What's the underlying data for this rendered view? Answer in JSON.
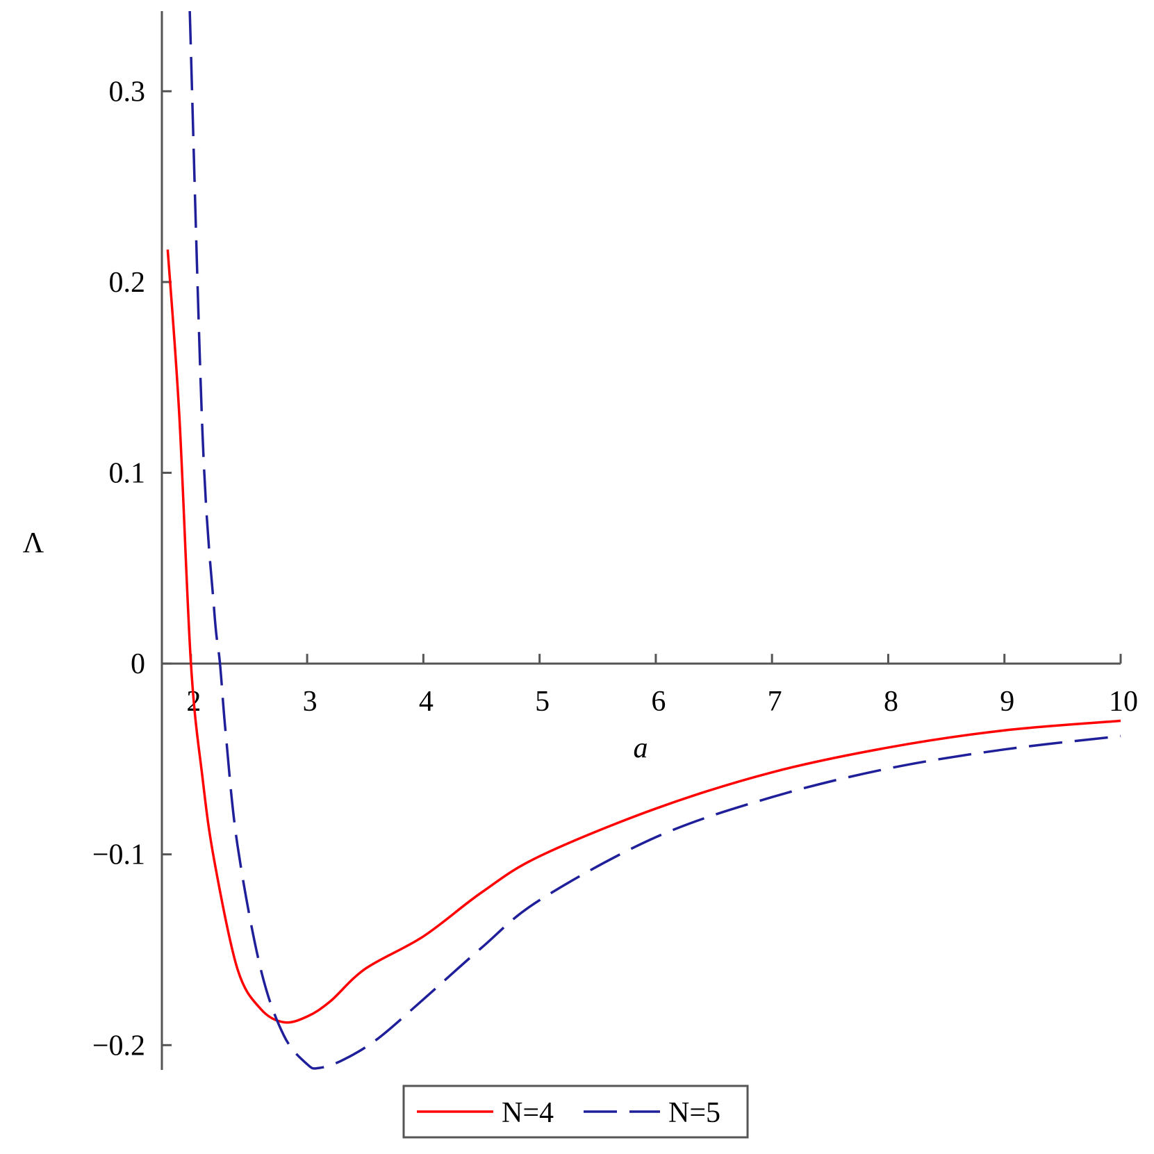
{
  "chart_data": {
    "type": "line",
    "x_label": "a",
    "y_label": "Λ",
    "xlim": [
      1.75,
      10
    ],
    "ylim": [
      -0.213,
      0.342
    ],
    "xticks": [
      2,
      3,
      4,
      5,
      6,
      7,
      8,
      9,
      10
    ],
    "yticks": [
      {
        "value": -0.2,
        "label": "−0.2"
      },
      {
        "value": -0.1,
        "label": "−0.1"
      },
      0,
      0.1,
      0.2,
      0.3
    ],
    "legend": "bottom",
    "series": [
      {
        "name": "N=4",
        "color": "#ff0000",
        "dash": false,
        "x": [
          1.8,
          1.9,
          2.0,
          2.1,
          2.2,
          2.4,
          2.6,
          2.8,
          3.0,
          3.2,
          3.5,
          4,
          4.5,
          5,
          6,
          7,
          8,
          9,
          10
        ],
        "values": [
          0.217,
          0.13,
          0,
          -0.06,
          -0.103,
          -0.16,
          -0.181,
          -0.188,
          -0.185,
          -0.177,
          -0.16,
          -0.143,
          -0.12,
          -0.101,
          -0.076,
          -0.057,
          -0.044,
          -0.035,
          -0.03
        ]
      },
      {
        "name": "N=5",
        "color": "#1f1f9a",
        "dash": true,
        "x": [
          1.99,
          2.1,
          2.2,
          2.25,
          2.3,
          2.4,
          2.6,
          2.8,
          3.0,
          3.1,
          3.3,
          3.6,
          4,
          4.5,
          5,
          6,
          7,
          8,
          9,
          10
        ],
        "values": [
          0.342,
          0.12,
          0.028,
          0,
          -0.037,
          -0.095,
          -0.16,
          -0.195,
          -0.21,
          -0.212,
          -0.208,
          -0.197,
          -0.176,
          -0.149,
          -0.124,
          -0.091,
          -0.07,
          -0.055,
          -0.045,
          -0.038
        ]
      }
    ]
  }
}
